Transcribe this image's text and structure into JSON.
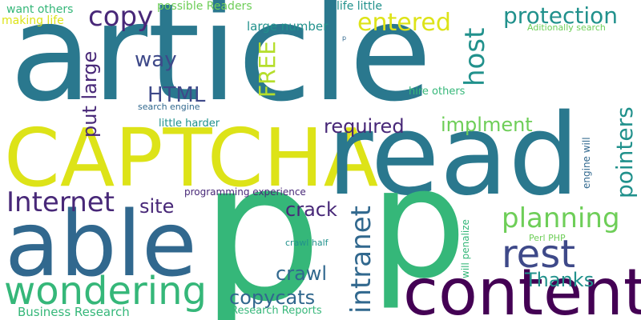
{
  "colors": {
    "background": "#ffffff",
    "teal": "#2a788e",
    "green": "#35b779",
    "yellow": "#dde318",
    "purple": "#440154",
    "violet": "#482878",
    "blue": "#3e4989",
    "steel": "#31688e",
    "cyan": "#21918c",
    "light_green": "#6ece58",
    "lime": "#b5de2b"
  },
  "words": {
    "article": "article",
    "captcha": "CAPTCHA",
    "read": "read",
    "p_big": "p",
    "p_mid": "p",
    "able": "able",
    "content": "content",
    "wondering": "wondering",
    "copy": "copy",
    "protection": "protection",
    "entered": "entered",
    "host": "host",
    "way": "way",
    "html": "HTML",
    "put_large": "put large",
    "free": "FREE",
    "internet": "Internet",
    "site": "site",
    "required": "required",
    "implment": "implment",
    "pointers": "pointers",
    "planning": "planning",
    "rest": "rest",
    "intranet": "intranet",
    "crack": "crack",
    "crawl": "crawl",
    "copycats": "copycats",
    "thanks": "Thanks",
    "want_others": "want others",
    "making_life": "making life",
    "possible_readers": "possible Readers",
    "life_little": "life little",
    "large_number": "large number",
    "additionally_search": "Aditionally search",
    "hire_others": "hire others",
    "search_engine": "search engine",
    "little_harder": "little harder",
    "programming_experience": "programming experience",
    "engine_will": "engine will",
    "will_penalize": "will penalize",
    "perl_php": "Perl PHP",
    "crawl_half": "crawl half",
    "business_research": "Business Research",
    "research_reports": "Research Reports",
    "p_tiny": "p"
  }
}
